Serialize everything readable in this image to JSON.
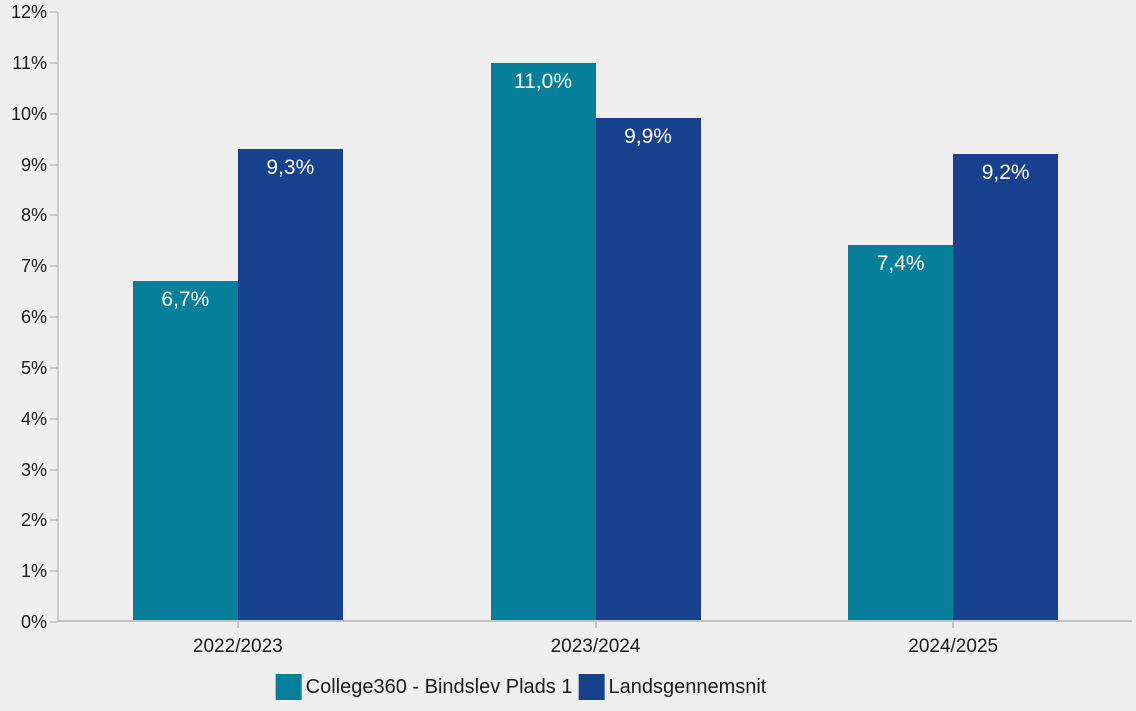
{
  "colors": {
    "background": "#efeff0",
    "axis_line": "#c6c9cc",
    "text": "#1b1b1b",
    "data_label_text": "#ffffff",
    "series_teal": "#057f9a",
    "series_blue": "#17418d"
  },
  "chart_data": {
    "type": "bar",
    "title": "",
    "xlabel": "",
    "ylabel": "",
    "categories": [
      "2022/2023",
      "2023/2024",
      "2024/2025"
    ],
    "series": [
      {
        "name": "College360 - Bindslev Plads 1",
        "color": "#057f9a",
        "values": [
          6.7,
          11.0,
          7.4
        ],
        "labels": [
          "6,7%",
          "11,0%",
          "7,4%"
        ]
      },
      {
        "name": "Landsgennemsnit",
        "color": "#17418d",
        "values": [
          9.3,
          9.9,
          9.2
        ],
        "labels": [
          "9,3%",
          "9,9%",
          "9,2%"
        ]
      }
    ],
    "ylim": [
      0,
      12
    ],
    "ytick_step": 1,
    "ytick_labels": [
      "0%",
      "1%",
      "2%",
      "3%",
      "4%",
      "5%",
      "6%",
      "7%",
      "8%",
      "9%",
      "10%",
      "11%",
      "12%"
    ],
    "grid": "off",
    "legend_position": "bottom-center",
    "data_label_position": "inside-top"
  }
}
